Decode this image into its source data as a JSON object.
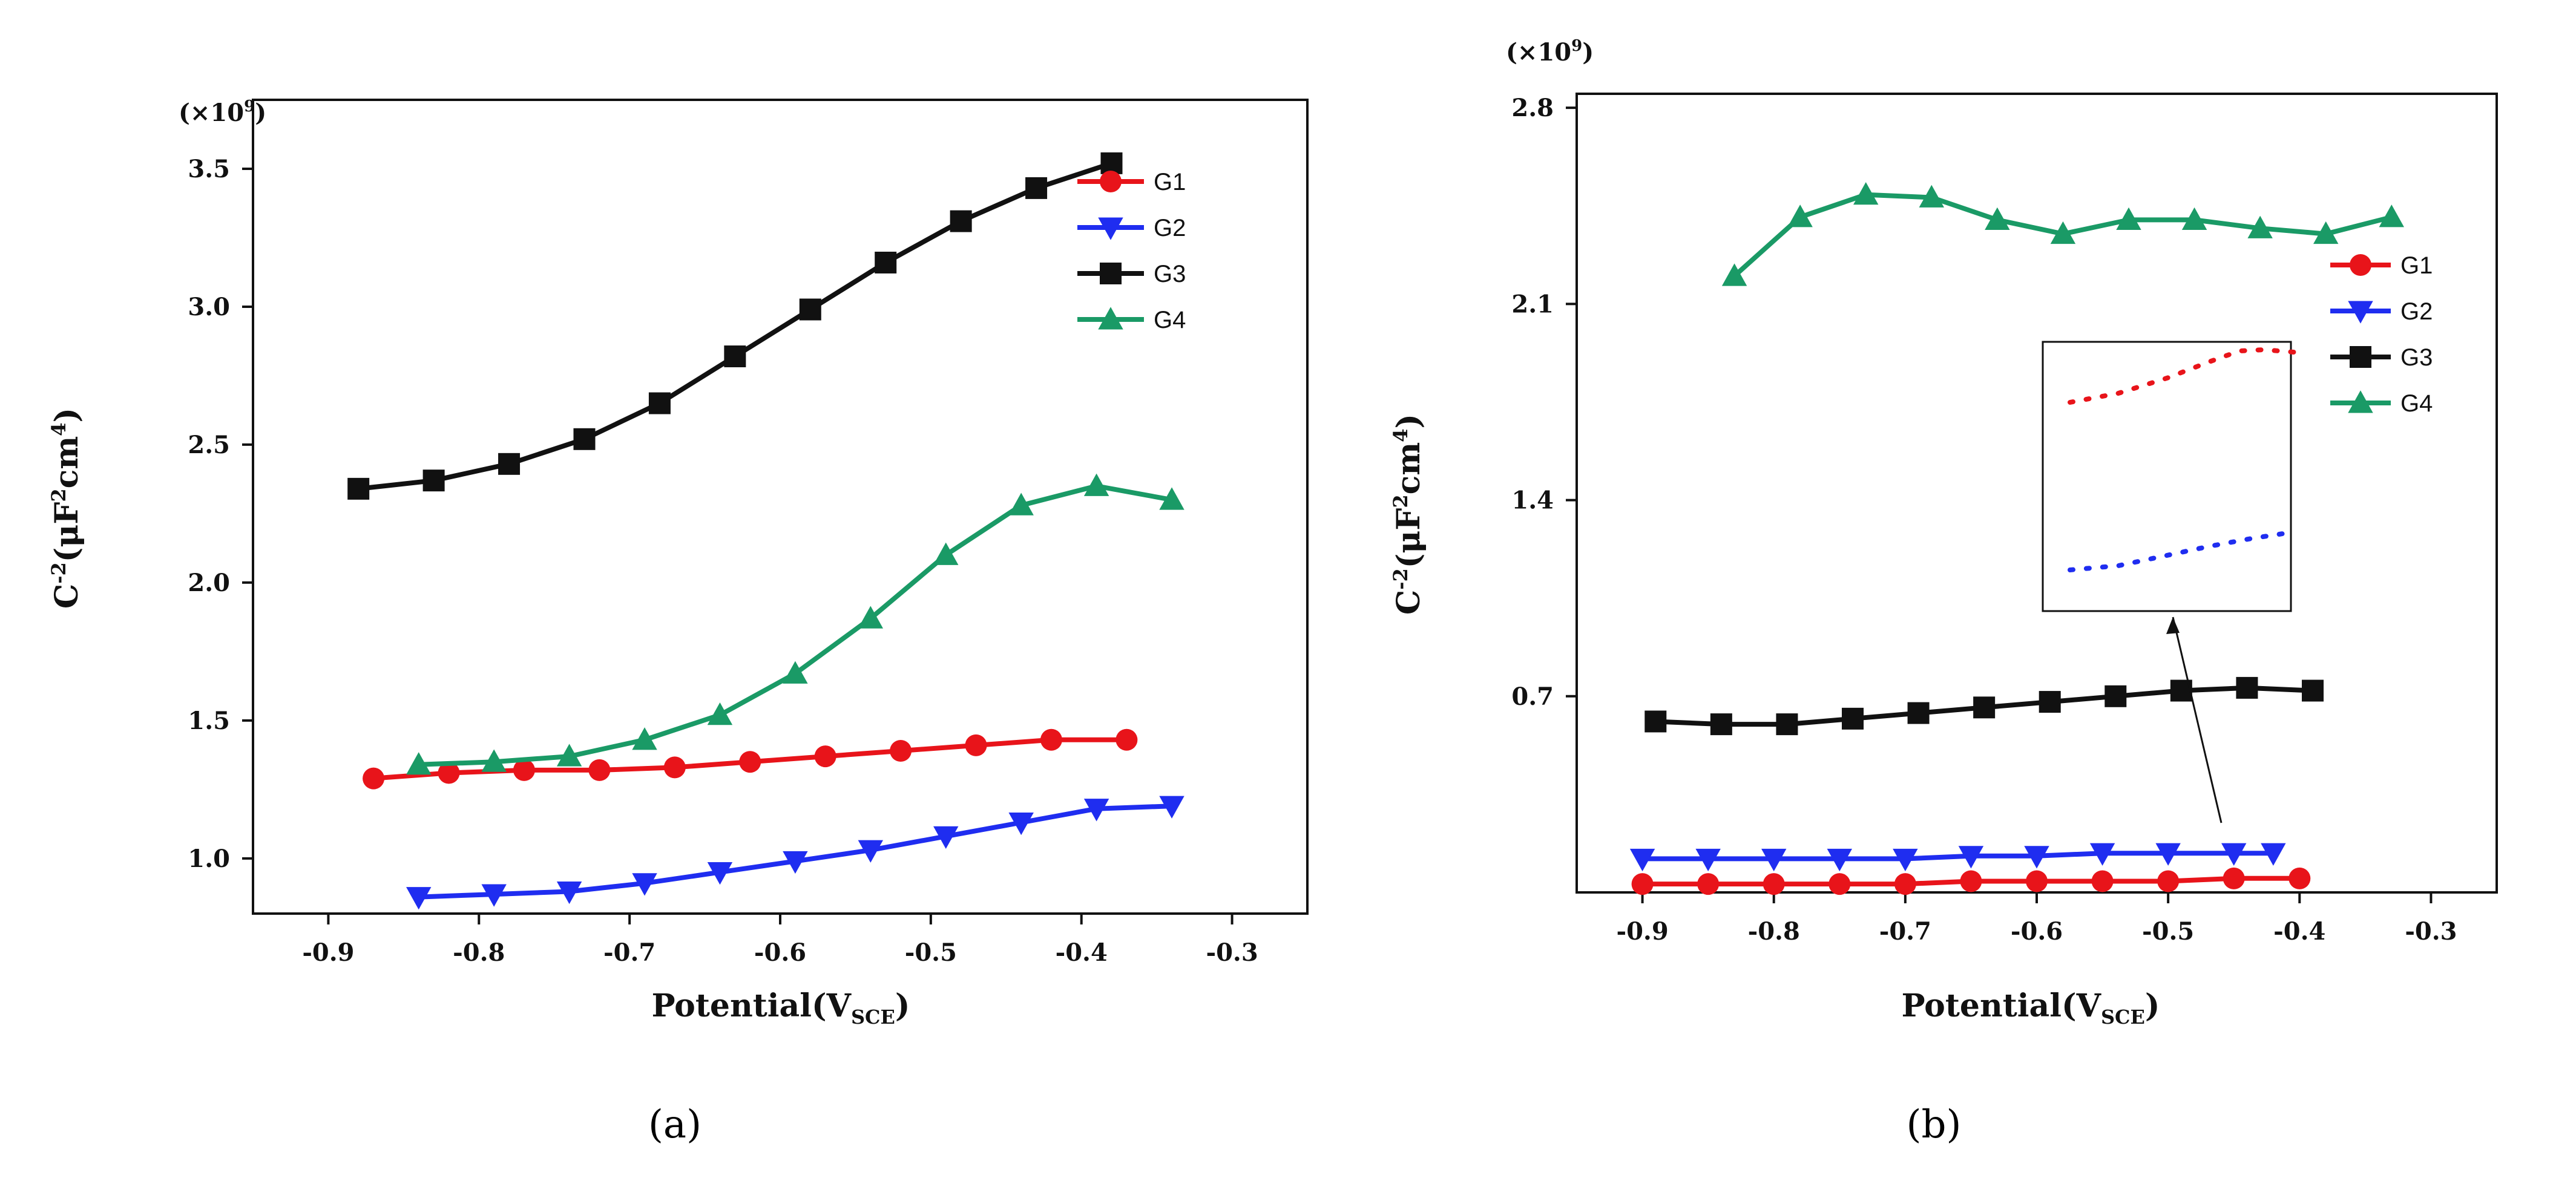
{
  "chart_data": [
    {
      "panel_label": "(a)",
      "type": "line",
      "title": "",
      "xlabel": "Potential(V",
      "xlabel_sub": "SCE",
      "ylabel": "C",
      "ylabel_sup": "-2",
      "ylabel_unit": "(μF",
      "ylabel_unit_sup": "2",
      "ylabel_unit2": "cm",
      "ylabel_unit2_sup": "4",
      "ylabel_close": ")",
      "multiplier": "(×10",
      "multiplier_sup": "9",
      "multiplier_close": ")",
      "xlim": [
        -0.95,
        -0.25
      ],
      "ylim": [
        0.8,
        3.75
      ],
      "xticks": [
        "-0.9",
        "-0.8",
        "-0.7",
        "-0.6",
        "-0.5",
        "-0.4",
        "-0.3"
      ],
      "xtick_values": [
        -0.9,
        -0.8,
        -0.7,
        -0.6,
        -0.5,
        -0.4,
        -0.3
      ],
      "yticks": [
        "1.0",
        "1.5",
        "2.0",
        "2.5",
        "3.0",
        "3.5"
      ],
      "ytick_values": [
        1.0,
        1.5,
        2.0,
        2.5,
        3.0,
        3.5
      ],
      "legend_position": "top-right",
      "series": [
        {
          "name": "G1",
          "color": "#e8141a",
          "marker": "circle",
          "x": [
            -0.87,
            -0.82,
            -0.77,
            -0.72,
            -0.67,
            -0.62,
            -0.57,
            -0.52,
            -0.47,
            -0.42,
            -0.37
          ],
          "y": [
            1.29,
            1.31,
            1.32,
            1.32,
            1.33,
            1.35,
            1.37,
            1.39,
            1.41,
            1.43,
            1.43
          ]
        },
        {
          "name": "G2",
          "color": "#1f2df0",
          "marker": "triangle-down",
          "x": [
            -0.84,
            -0.79,
            -0.74,
            -0.69,
            -0.64,
            -0.59,
            -0.54,
            -0.49,
            -0.44,
            -0.39,
            -0.34
          ],
          "y": [
            0.86,
            0.87,
            0.88,
            0.91,
            0.95,
            0.99,
            1.03,
            1.08,
            1.13,
            1.18,
            1.19
          ]
        },
        {
          "name": "G3",
          "color": "#111111",
          "marker": "square",
          "x": [
            -0.88,
            -0.83,
            -0.78,
            -0.73,
            -0.68,
            -0.63,
            -0.58,
            -0.53,
            -0.48,
            -0.43,
            -0.38
          ],
          "y": [
            2.34,
            2.37,
            2.43,
            2.52,
            2.65,
            2.82,
            2.99,
            3.16,
            3.31,
            3.43,
            3.52
          ]
        },
        {
          "name": "G4",
          "color": "#1a9a66",
          "marker": "triangle-up",
          "x": [
            -0.84,
            -0.79,
            -0.74,
            -0.69,
            -0.64,
            -0.59,
            -0.54,
            -0.49,
            -0.44,
            -0.39,
            -0.34
          ],
          "y": [
            1.34,
            1.35,
            1.37,
            1.43,
            1.52,
            1.67,
            1.87,
            2.1,
            2.28,
            2.35,
            2.3
          ]
        }
      ]
    },
    {
      "panel_label": "(b)",
      "type": "line",
      "title": "",
      "xlabel": "Potential(V",
      "xlabel_sub": "SCE",
      "xlabel_close": ")",
      "ylabel": "C",
      "ylabel_sup": "-2",
      "ylabel_unit": "(μF",
      "ylabel_unit_sup": "2",
      "ylabel_unit2": "cm",
      "ylabel_unit2_sup": "4",
      "ylabel_close": ")",
      "multiplier": "(×10",
      "multiplier_sup": "9",
      "multiplier_close": ")",
      "xlim": [
        -0.95,
        -0.25
      ],
      "ylim": [
        0.0,
        2.85
      ],
      "xticks": [
        "-0.9",
        "-0.8",
        "-0.7",
        "-0.6",
        "-0.5",
        "-0.4",
        "-0.3"
      ],
      "xtick_values": [
        -0.9,
        -0.8,
        -0.7,
        -0.6,
        -0.5,
        -0.4,
        -0.3
      ],
      "yticks": [
        "0.7",
        "1.4",
        "2.1",
        "2.8"
      ],
      "ytick_values": [
        0.7,
        1.4,
        2.1,
        2.8
      ],
      "legend_position": "right",
      "inset": "zoomed view of G1 and G2 trends",
      "series": [
        {
          "name": "G1",
          "color": "#e8141a",
          "marker": "circle",
          "x": [
            -0.9,
            -0.85,
            -0.8,
            -0.75,
            -0.7,
            -0.65,
            -0.6,
            -0.55,
            -0.5,
            -0.45,
            -0.4
          ],
          "y": [
            0.03,
            0.03,
            0.03,
            0.03,
            0.03,
            0.04,
            0.04,
            0.04,
            0.04,
            0.05,
            0.05
          ]
        },
        {
          "name": "G2",
          "color": "#1f2df0",
          "marker": "triangle-down",
          "x": [
            -0.9,
            -0.85,
            -0.8,
            -0.75,
            -0.7,
            -0.65,
            -0.6,
            -0.55,
            -0.5,
            -0.45,
            -0.42
          ],
          "y": [
            0.12,
            0.12,
            0.12,
            0.12,
            0.12,
            0.13,
            0.13,
            0.14,
            0.14,
            0.14,
            0.14
          ]
        },
        {
          "name": "G3",
          "color": "#111111",
          "marker": "square",
          "x": [
            -0.89,
            -0.84,
            -0.79,
            -0.74,
            -0.69,
            -0.64,
            -0.59,
            -0.54,
            -0.49,
            -0.44,
            -0.39
          ],
          "y": [
            0.61,
            0.6,
            0.6,
            0.62,
            0.64,
            0.66,
            0.68,
            0.7,
            0.72,
            0.73,
            0.72
          ]
        },
        {
          "name": "G4",
          "color": "#1a9a66",
          "marker": "triangle-up",
          "x": [
            -0.83,
            -0.78,
            -0.73,
            -0.68,
            -0.63,
            -0.58,
            -0.53,
            -0.48,
            -0.43,
            -0.38,
            -0.33
          ],
          "y": [
            2.2,
            2.41,
            2.49,
            2.48,
            2.4,
            2.35,
            2.4,
            2.4,
            2.37,
            2.35,
            2.41
          ]
        }
      ]
    }
  ]
}
